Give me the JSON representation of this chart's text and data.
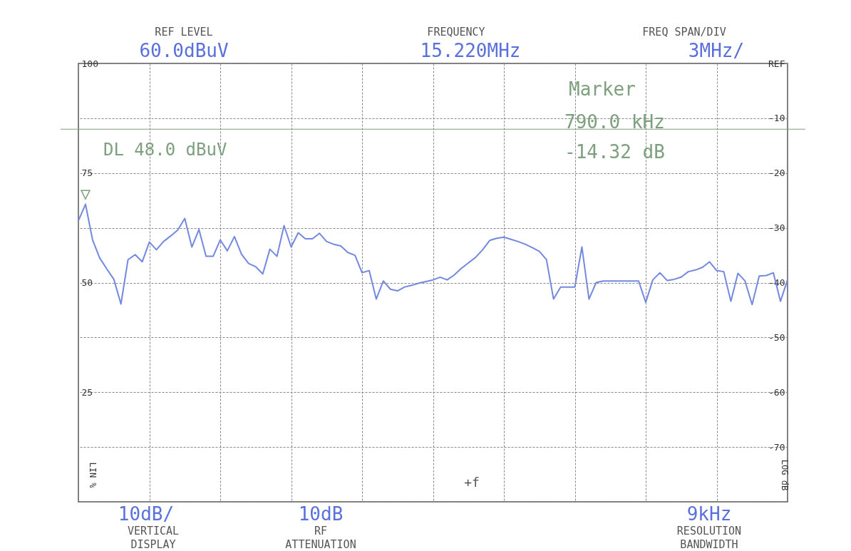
{
  "chart_data": {
    "type": "line",
    "color": "#7388e0",
    "categories": [
      null,
      null,
      null,
      null,
      null,
      null,
      null,
      null,
      null,
      null,
      null,
      null,
      null,
      null,
      null,
      null,
      null,
      null,
      null,
      null,
      null,
      null,
      null,
      null,
      null,
      null,
      null,
      null,
      null,
      null,
      null,
      null,
      null,
      null,
      null,
      null,
      null,
      null,
      null,
      null,
      null,
      null,
      null,
      null,
      null,
      null,
      null,
      null,
      null,
      null,
      null,
      null,
      null,
      null,
      null,
      null,
      null,
      null,
      null,
      null,
      null,
      null,
      null,
      null,
      null,
      null,
      null,
      null,
      null,
      null,
      null,
      null,
      null,
      null,
      null,
      null,
      null,
      null,
      null,
      null,
      null,
      null,
      null,
      null,
      null,
      null,
      null,
      null,
      null,
      null,
      null,
      null,
      null,
      null,
      null,
      null,
      null,
      null,
      null,
      null,
      null
    ],
    "values": [
      -28.7,
      -25.7,
      -32.2,
      -35.5,
      -37.5,
      -39.4,
      -43.9,
      -35.8,
      -34.9,
      -36.2,
      -32.6,
      -34.0,
      -32.5,
      -31.5,
      -30.4,
      -28.3,
      -33.5,
      -30.3,
      -35.2,
      -35.2,
      -32.2,
      -34.2,
      -31.6,
      -34.8,
      -36.5,
      -37.1,
      -38.4,
      -33.9,
      -35.2,
      -29.6,
      -33.5,
      -30.9,
      -32.0,
      -32.0,
      -31.0,
      -32.5,
      -33.0,
      -33.3,
      -34.5,
      -35.0,
      -38.2,
      -37.8,
      -43.0,
      -39.7,
      -41.2,
      -41.5,
      -40.8,
      -40.5,
      -40.1,
      -39.8,
      -39.5,
      -39.0,
      -39.5,
      -38.6,
      -37.4,
      -36.4,
      -35.4,
      -34.0,
      -32.3,
      -31.9,
      -31.7,
      -32.1,
      -32.5,
      -33.0,
      -33.6,
      -34.3,
      -35.8,
      -43.0,
      -40.8,
      -40.8,
      -40.8,
      -33.5,
      -43.0,
      -40.0,
      -39.7,
      -39.7,
      -39.7,
      -39.7,
      -39.7,
      -39.7,
      -43.6,
      -39.5,
      -38.2,
      -39.6,
      -39.4,
      -39.0,
      -38.0,
      -37.7,
      -37.2,
      -36.2,
      -37.8,
      -38.0,
      -43.4,
      -38.3,
      -39.7,
      -44.0,
      -38.8,
      -38.7,
      -38.2,
      -43.4,
      -39.5
    ],
    "ylim": [
      -80,
      0
    ],
    "yticks": [
      {
        "value": 0,
        "label": "REF"
      },
      -10,
      -20,
      -30,
      -40,
      -50,
      -60,
      -70,
      {
        "value": -80,
        "label": null
      }
    ],
    "ylabel": "LOG dB",
    "y2lim": [
      0,
      100
    ],
    "y2ticks": [
      100,
      75,
      50,
      25
    ],
    "y2label": "LIN %",
    "grid": true,
    "ref_lines": [
      {
        "axis": "y",
        "value": -12,
        "label": "DL 48.0 dBuV",
        "color": "#7fa07f"
      }
    ],
    "annotations": [
      "REF LEVEL",
      "60.0dBuV",
      "FREQUENCY",
      "15.220MHz",
      "FREQ SPAN/DIV",
      "3MHz/",
      "10dB/",
      "VERTICAL",
      "DISPLAY",
      "10dB",
      "RF",
      "ATTENUATION",
      "9kHz",
      "RESOLUTION",
      "BANDWIDTH",
      "Marker",
      "790.0 kHz",
      "-14.32 dB",
      "▽",
      "+f"
    ]
  }
}
